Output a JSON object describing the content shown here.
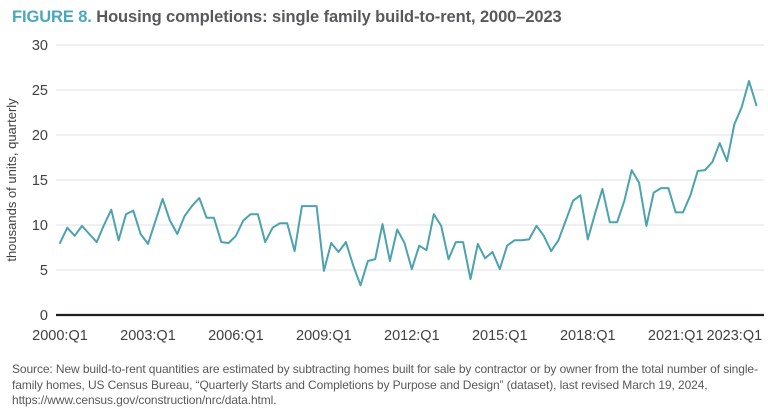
{
  "title": {
    "prefix": "FIGURE 8.",
    "text": " Housing completions: single family build-to-rent, 2000–2023"
  },
  "y_axis": {
    "label": "thousands of units, quarterly",
    "ticks": [
      0,
      5,
      10,
      15,
      20,
      25,
      30
    ]
  },
  "x_axis": {
    "tick_labels": [
      "2000:Q1",
      "2003:Q1",
      "2006:Q1",
      "2009:Q1",
      "2012:Q1",
      "2015:Q1",
      "2018:Q1",
      "2021:Q1",
      "2023:Q1"
    ],
    "tick_indices": [
      0,
      12,
      24,
      36,
      48,
      60,
      72,
      84,
      92
    ]
  },
  "source": "Source: New build-to-rent quantities are estimated by subtracting homes built for sale by contractor or by owner from the total number of single-family homes, US Census Bureau, “Quarterly Starts and Completions by Purpose and Design” (dataset), last revised March 19, 2024, https://www.census.gov/construction/nrc/data.html.",
  "colors": {
    "accent_teal": "#4AA8BC",
    "line": "#4BA3AF",
    "title_text": "#58595B",
    "axis_text": "#414042",
    "gridline": "#E8E6E7",
    "axis_line": "#231F20",
    "source_text": "#58595B"
  },
  "chart_data": {
    "type": "line",
    "title": "Housing completions: single family build-to-rent, 2000–2023",
    "xlabel": "",
    "ylabel": "thousands of units, quarterly",
    "ylim": [
      0,
      30
    ],
    "grid": "horizontal",
    "legend": "none",
    "x_tick_labels": [
      "2000:Q1",
      "2003:Q1",
      "2006:Q1",
      "2009:Q1",
      "2012:Q1",
      "2015:Q1",
      "2018:Q1",
      "2021:Q1",
      "2023:Q1"
    ],
    "categories": [
      "2000:Q1",
      "2000:Q2",
      "2000:Q3",
      "2000:Q4",
      "2001:Q1",
      "2001:Q2",
      "2001:Q3",
      "2001:Q4",
      "2002:Q1",
      "2002:Q2",
      "2002:Q3",
      "2002:Q4",
      "2003:Q1",
      "2003:Q2",
      "2003:Q3",
      "2003:Q4",
      "2004:Q1",
      "2004:Q2",
      "2004:Q3",
      "2004:Q4",
      "2005:Q1",
      "2005:Q2",
      "2005:Q3",
      "2005:Q4",
      "2006:Q1",
      "2006:Q2",
      "2006:Q3",
      "2006:Q4",
      "2007:Q1",
      "2007:Q2",
      "2007:Q3",
      "2007:Q4",
      "2008:Q1",
      "2008:Q2",
      "2008:Q3",
      "2008:Q4",
      "2009:Q1",
      "2009:Q2",
      "2009:Q3",
      "2009:Q4",
      "2010:Q1",
      "2010:Q2",
      "2010:Q3",
      "2010:Q4",
      "2011:Q1",
      "2011:Q2",
      "2011:Q3",
      "2011:Q4",
      "2012:Q1",
      "2012:Q2",
      "2012:Q3",
      "2012:Q4",
      "2013:Q1",
      "2013:Q2",
      "2013:Q3",
      "2013:Q4",
      "2014:Q1",
      "2014:Q2",
      "2014:Q3",
      "2014:Q4",
      "2015:Q1",
      "2015:Q2",
      "2015:Q3",
      "2015:Q4",
      "2016:Q1",
      "2016:Q2",
      "2016:Q3",
      "2016:Q4",
      "2017:Q1",
      "2017:Q2",
      "2017:Q3",
      "2017:Q4",
      "2018:Q1",
      "2018:Q2",
      "2018:Q3",
      "2018:Q4",
      "2019:Q1",
      "2019:Q2",
      "2019:Q3",
      "2019:Q4",
      "2020:Q1",
      "2020:Q2",
      "2020:Q3",
      "2020:Q4",
      "2021:Q1",
      "2021:Q2",
      "2021:Q3",
      "2021:Q4",
      "2022:Q1",
      "2022:Q2",
      "2022:Q3",
      "2022:Q4",
      "2023:Q1",
      "2023:Q2",
      "2023:Q3",
      "2023:Q4"
    ],
    "values": [
      8.0,
      9.7,
      8.8,
      9.9,
      9.0,
      8.1,
      10.0,
      11.7,
      8.3,
      11.2,
      11.6,
      9.0,
      7.9,
      10.4,
      12.9,
      10.5,
      9.0,
      11.0,
      12.1,
      13.0,
      10.8,
      10.8,
      8.1,
      8.0,
      8.8,
      10.5,
      11.2,
      11.2,
      8.1,
      9.7,
      10.2,
      10.2,
      7.1,
      12.1,
      12.1,
      12.1,
      4.9,
      8.0,
      7.0,
      8.1,
      5.5,
      3.3,
      6.0,
      6.2,
      10.1,
      6.0,
      9.5,
      8.0,
      5.1,
      7.7,
      7.2,
      11.2,
      9.9,
      6.2,
      8.1,
      8.1,
      4.0,
      7.9,
      6.3,
      7.0,
      5.1,
      7.7,
      8.3,
      8.3,
      8.4,
      9.9,
      8.8,
      7.1,
      8.3,
      10.5,
      12.7,
      13.3,
      8.4,
      11.3,
      14.0,
      10.3,
      10.3,
      12.7,
      16.1,
      14.7,
      9.9,
      13.6,
      14.1,
      14.1,
      11.4,
      11.4,
      13.3,
      16.0,
      16.1,
      17.0,
      19.1,
      17.1,
      21.2,
      23.1,
      26.0,
      23.3
    ]
  }
}
